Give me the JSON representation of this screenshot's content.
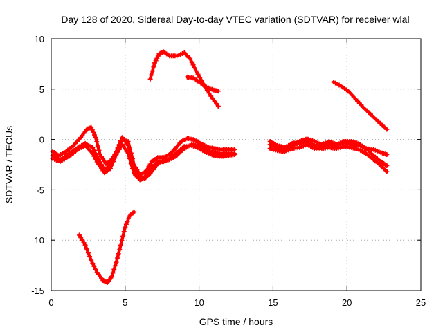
{
  "chart_data": {
    "type": "line",
    "title": "Day 128 of 2020, Sidereal Day-to-day VTEC variation (SDTVAR) for receiver wlal",
    "xlabel": "GPS time / hours",
    "ylabel": "SDTVAR / TECUs",
    "xlim": [
      0,
      25
    ],
    "ylim": [
      -15,
      10
    ],
    "xticks": [
      0,
      5,
      10,
      15,
      20,
      25
    ],
    "yticks": [
      -15,
      -10,
      -5,
      0,
      5,
      10
    ],
    "xtick_labels": [
      "0",
      "5",
      "10",
      "15",
      "20",
      "25"
    ],
    "ytick_labels": [
      "-15",
      "-10",
      "-5",
      "0",
      "5",
      "10"
    ],
    "grid": true,
    "legend": "none",
    "series_color": "#ff0000",
    "series": [
      {
        "name": "arc-low-dip",
        "x": [
          1.9,
          2.3,
          2.7,
          3.1,
          3.5,
          3.8,
          4.1,
          4.4,
          4.7,
          5.0,
          5.3,
          5.6
        ],
        "y": [
          -9.5,
          -10.5,
          -12.0,
          -13.2,
          -14.0,
          -14.2,
          -13.6,
          -12.2,
          -10.5,
          -8.7,
          -7.6,
          -7.2
        ]
      },
      {
        "name": "arc-high-hump",
        "x": [
          6.7,
          7.0,
          7.3,
          7.6,
          8.0,
          8.5,
          9.0,
          9.4,
          9.8,
          10.3,
          10.8,
          11.3
        ],
        "y": [
          6.0,
          7.6,
          8.5,
          8.7,
          8.3,
          8.3,
          8.6,
          8.0,
          6.8,
          5.5,
          4.3,
          3.3
        ]
      },
      {
        "name": "arc-high-tail",
        "x": [
          9.2,
          9.6,
          10.0,
          10.5,
          11.0,
          11.3
        ],
        "y": [
          6.2,
          6.1,
          5.7,
          5.2,
          4.9,
          4.8
        ]
      },
      {
        "name": "arc-late-decline",
        "x": [
          19.1,
          19.6,
          20.1,
          20.6,
          21.1,
          21.6,
          22.1,
          22.7
        ],
        "y": [
          5.7,
          5.3,
          4.8,
          4.0,
          3.2,
          2.5,
          1.8,
          1.0
        ]
      },
      {
        "name": "cluster-a",
        "x": [
          0.1,
          0.5,
          1.0,
          1.5,
          2.0,
          2.4,
          2.7,
          3.0,
          3.3,
          3.7,
          4.0,
          4.4,
          4.8,
          5.2,
          5.6,
          6.0,
          6.4,
          6.8,
          7.2,
          7.6,
          8.0,
          8.4,
          8.8,
          9.2,
          9.6,
          10.0,
          10.5,
          11.0,
          11.5,
          12.0,
          12.4
        ],
        "y": [
          -1.2,
          -1.6,
          -1.2,
          -0.6,
          0.2,
          1.0,
          1.2,
          0.2,
          -1.5,
          -2.4,
          -2.2,
          -1.2,
          0.0,
          -0.2,
          -2.5,
          -3.5,
          -3.2,
          -2.2,
          -1.8,
          -1.8,
          -1.5,
          -0.9,
          -0.2,
          0.1,
          0.0,
          -0.3,
          -0.7,
          -0.9,
          -1.0,
          -1.0,
          -1.0
        ]
      },
      {
        "name": "cluster-b",
        "x": [
          0.1,
          0.6,
          1.2,
          1.8,
          2.3,
          2.8,
          3.2,
          3.6,
          4.0,
          4.4,
          4.8,
          5.2,
          5.6,
          6.0,
          6.4,
          6.8,
          7.2,
          7.6,
          8.0,
          8.5,
          9.0,
          9.5,
          10.0,
          10.5,
          11.0,
          11.5,
          12.0,
          12.4
        ],
        "y": [
          -1.6,
          -2.0,
          -1.4,
          -0.8,
          -0.4,
          -0.8,
          -2.0,
          -3.0,
          -2.6,
          -1.2,
          0.2,
          -0.6,
          -3.0,
          -3.9,
          -3.7,
          -2.8,
          -2.2,
          -2.2,
          -2.0,
          -1.6,
          -0.9,
          -0.5,
          -0.6,
          -1.0,
          -1.3,
          -1.4,
          -1.4,
          -1.4
        ]
      },
      {
        "name": "cluster-c",
        "x": [
          0.1,
          0.6,
          1.2,
          1.8,
          2.3,
          2.8,
          3.2,
          3.6,
          4.0,
          4.4,
          4.8,
          5.2,
          5.6,
          6.0,
          6.4,
          6.8,
          7.2,
          7.6,
          8.0,
          8.5,
          9.0,
          9.5,
          10.0,
          10.5,
          11.0,
          11.5,
          12.0,
          12.4
        ],
        "y": [
          -1.9,
          -2.2,
          -1.7,
          -1.0,
          -0.6,
          -1.4,
          -2.5,
          -3.3,
          -2.9,
          -1.5,
          -0.5,
          -1.4,
          -3.4,
          -4.0,
          -3.8,
          -3.2,
          -2.4,
          -2.1,
          -1.9,
          -1.3,
          -0.7,
          -0.6,
          -0.9,
          -1.3,
          -1.6,
          -1.7,
          -1.6,
          -1.5
        ]
      },
      {
        "name": "cluster-d",
        "x": [
          14.8,
          15.3,
          15.8,
          16.3,
          16.8,
          17.3,
          17.8,
          18.3,
          18.8,
          19.3,
          19.8,
          20.3,
          20.8,
          21.3,
          21.8,
          22.3,
          22.7
        ],
        "y": [
          -0.2,
          -0.6,
          -0.8,
          -0.4,
          -0.2,
          0.1,
          -0.2,
          -0.5,
          -0.2,
          -0.5,
          -0.2,
          -0.2,
          -0.4,
          -0.9,
          -1.0,
          -1.3,
          -1.5
        ]
      },
      {
        "name": "cluster-e",
        "x": [
          14.8,
          15.3,
          15.8,
          16.3,
          16.8,
          17.3,
          17.8,
          18.3,
          18.8,
          19.3,
          19.8,
          20.3,
          20.8,
          21.3,
          21.8,
          22.3,
          22.7
        ],
        "y": [
          -0.5,
          -0.9,
          -1.0,
          -0.6,
          -0.4,
          -0.2,
          -0.6,
          -0.6,
          -0.5,
          -0.6,
          -0.3,
          -0.5,
          -0.6,
          -0.9,
          -1.6,
          -2.2,
          -2.6
        ]
      },
      {
        "name": "cluster-f",
        "x": [
          14.8,
          15.3,
          15.8,
          16.3,
          16.8,
          17.3,
          17.8,
          18.3,
          18.8,
          19.3,
          19.8,
          20.3,
          20.8,
          21.3,
          21.8,
          22.3,
          22.7
        ],
        "y": [
          -0.9,
          -1.1,
          -1.2,
          -0.9,
          -0.8,
          -0.5,
          -0.9,
          -0.9,
          -0.8,
          -0.9,
          -0.7,
          -0.8,
          -1.0,
          -1.4,
          -2.0,
          -2.6,
          -3.2
        ]
      }
    ]
  }
}
